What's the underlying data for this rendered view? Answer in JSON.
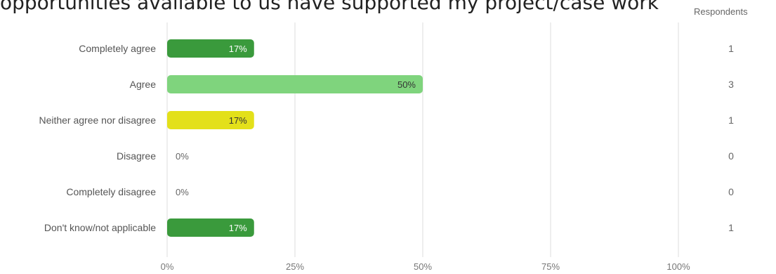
{
  "title": "opportunities available to us have supported my project/case work",
  "respondents_header": "Respondents",
  "chart_data": {
    "type": "bar",
    "orientation": "horizontal",
    "title": "opportunities available to us have supported my project/case work",
    "categories": [
      "Completely agree",
      "Agree",
      "Neither agree nor disagree",
      "Disagree",
      "Completely disagree",
      "Don't know/not applicable"
    ],
    "values": [
      17,
      50,
      17,
      0,
      0,
      17
    ],
    "value_labels": [
      "17%",
      "50%",
      "17%",
      "0%",
      "0%",
      "17%"
    ],
    "respondents": [
      1,
      3,
      1,
      0,
      0,
      1
    ],
    "bar_colors": [
      "#3a9a3c",
      "#7fd47d",
      "#e3e01a",
      "#3a9a3c",
      "#3a9a3c",
      "#3a9a3c"
    ],
    "label_colors": [
      "#ffffff",
      "#333333",
      "#333333",
      "#666666",
      "#666666",
      "#ffffff"
    ],
    "xlim": [
      0,
      100
    ],
    "xticks": [
      0,
      25,
      50,
      75,
      100
    ],
    "xtick_labels": [
      "0%",
      "25%",
      "50%",
      "75%",
      "100%"
    ],
    "grid": true
  }
}
